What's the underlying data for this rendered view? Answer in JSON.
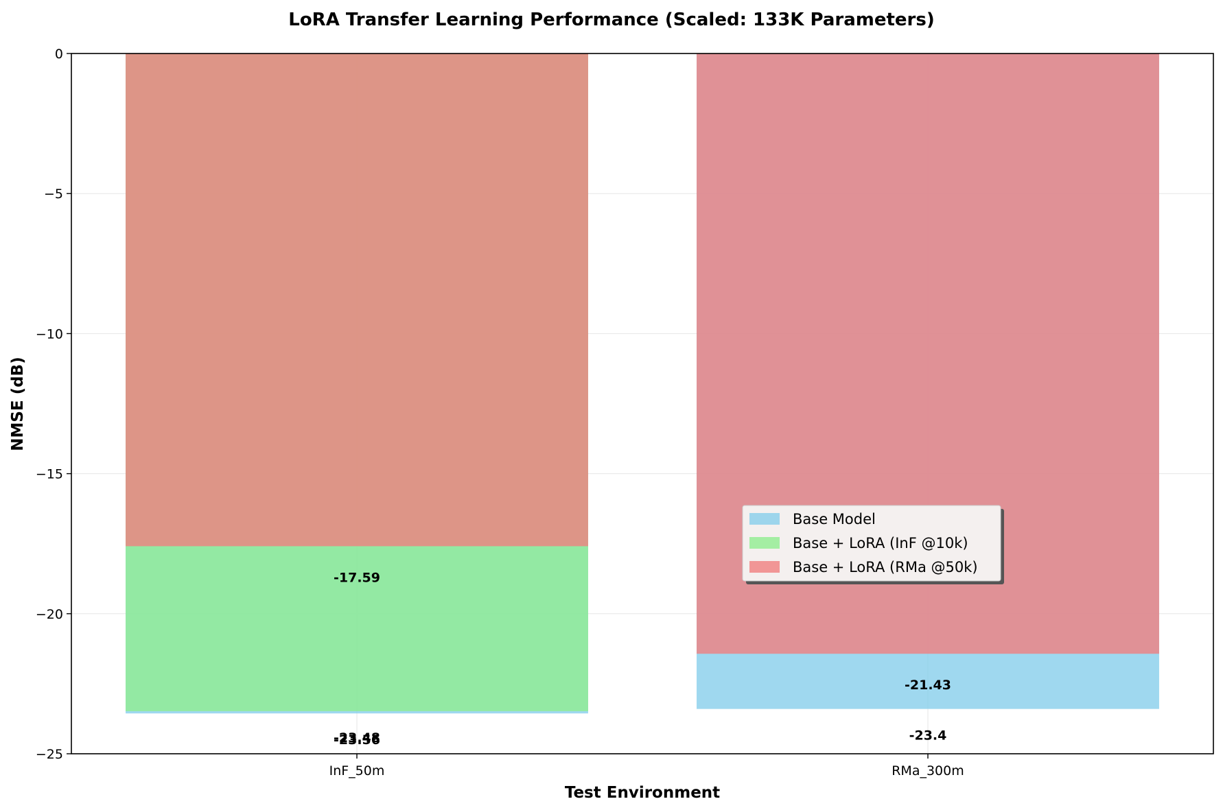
{
  "chart_data": {
    "type": "bar",
    "title": "LoRA Transfer Learning Performance (Scaled: 133K Parameters)",
    "xlabel": "Test Environment",
    "ylabel": "NMSE (dB)",
    "categories": [
      "InF_50m",
      "RMa_300m"
    ],
    "ylim": [
      -25,
      0
    ],
    "yticks": [
      0,
      -5,
      -10,
      -15,
      -20,
      -25
    ],
    "ytick_labels": [
      "0",
      "−5",
      "−10",
      "−15",
      "−20",
      "−25"
    ],
    "grid": true,
    "legend_position": "center-right",
    "series": [
      {
        "name": "Base Model",
        "color": "#87ceeb",
        "opacity": 0.8,
        "values": [
          -23.56,
          -23.4
        ],
        "labels": [
          "-23.56",
          "-23.4"
        ]
      },
      {
        "name": "Base + LoRA (InF @10k)",
        "color": "#90ee90",
        "opacity": 0.8,
        "values": [
          -23.48,
          0
        ],
        "labels": [
          "-23.48",
          ""
        ]
      },
      {
        "name": "Base + LoRA (RMa @50k)",
        "color": "#f08080",
        "opacity": 0.8,
        "values": [
          -17.59,
          -21.43
        ],
        "labels": [
          "-17.59",
          "-21.43"
        ]
      }
    ]
  }
}
